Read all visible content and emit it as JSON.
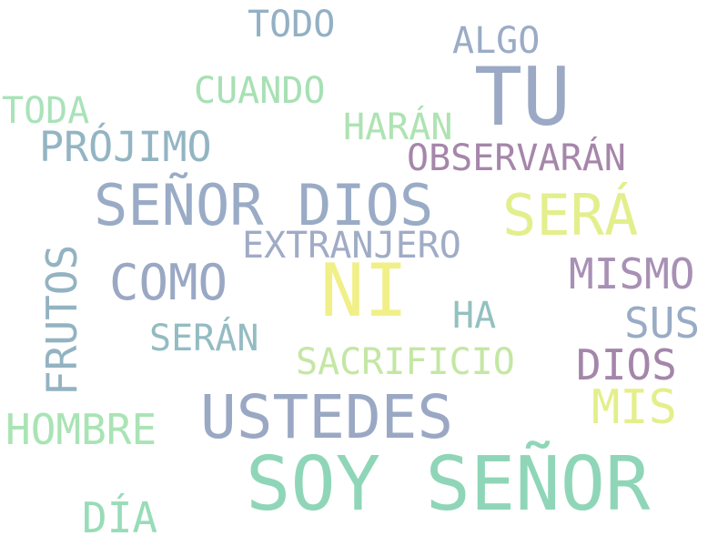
{
  "words": [
    {
      "id": "w-todo",
      "text": "TODO",
      "color": "#93b0c4"
    },
    {
      "id": "w-algo",
      "text": "ALGO",
      "color": "#9aacc6"
    },
    {
      "id": "w-tu",
      "text": "TU",
      "color": "#9ba9c5"
    },
    {
      "id": "w-cuando",
      "text": "CUANDO",
      "color": "#a7e0b4"
    },
    {
      "id": "w-toda",
      "text": "TODA",
      "color": "#a9e3b9"
    },
    {
      "id": "w-haran",
      "text": "HARÁN",
      "color": "#aee3b2"
    },
    {
      "id": "w-projimo",
      "text": "PRÓJIMO",
      "color": "#93b5c3"
    },
    {
      "id": "w-observaran",
      "text": "OBSERVARÁN",
      "color": "#a686aa"
    },
    {
      "id": "w-senor-dios",
      "text": "SEÑOR DIOS",
      "color": "#9aabc6"
    },
    {
      "id": "w-sera",
      "text": "SERÁ",
      "color": "#e3ef8c"
    },
    {
      "id": "w-extranjero",
      "text": "EXTRANJERO",
      "color": "#a0acc6"
    },
    {
      "id": "w-frutos",
      "text": "FRUTOS",
      "color": "#93b3c2"
    },
    {
      "id": "w-como",
      "text": "COMO",
      "color": "#9aa8c4"
    },
    {
      "id": "w-ni",
      "text": "NI",
      "color": "#f1f088"
    },
    {
      "id": "w-mismo",
      "text": "MISMO",
      "color": "#a890b5"
    },
    {
      "id": "w-ha",
      "text": "HA",
      "color": "#93c1bf"
    },
    {
      "id": "w-sus",
      "text": "SUS",
      "color": "#99abc5"
    },
    {
      "id": "w-seran",
      "text": "SERÁN",
      "color": "#93bcc2"
    },
    {
      "id": "w-sacrificio",
      "text": "SACRIFICIO",
      "color": "#c4e7a4"
    },
    {
      "id": "w-dios",
      "text": "DIOS",
      "color": "#a486aa"
    },
    {
      "id": "w-mis",
      "text": "MIS",
      "color": "#e4ef8a"
    },
    {
      "id": "w-ustedes",
      "text": "USTEDES",
      "color": "#9aa8c4"
    },
    {
      "id": "w-hombre",
      "text": "HOMBRE",
      "color": "#a9e4b4"
    },
    {
      "id": "w-soy-senor",
      "text": "SOY SEÑOR",
      "color": "#8fd6b8"
    },
    {
      "id": "w-dia",
      "text": "DÍA",
      "color": "#98dcb8"
    }
  ]
}
